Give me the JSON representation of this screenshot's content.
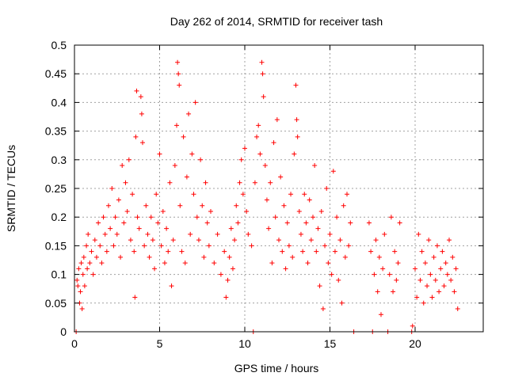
{
  "colors": {
    "series": "#ff0000",
    "axis": "#000000",
    "grid": "#a0a0a0"
  },
  "chart_data": {
    "type": "scatter",
    "title": "Day 262 of 2014, SRMTID for receiver tash",
    "xlabel": "GPS time / hours",
    "ylabel": "SRMTID / TECUs",
    "xlim": [
      0,
      24
    ],
    "ylim": [
      0,
      0.5
    ],
    "xticks": [
      0,
      5,
      10,
      15,
      20
    ],
    "yticks": [
      0,
      0.05,
      0.1,
      0.15,
      0.2,
      0.25,
      0.3,
      0.35,
      0.4,
      0.45,
      0.5
    ],
    "xtick_labels": [
      "0",
      "5",
      "10",
      "15",
      "20"
    ],
    "ytick_labels": [
      "0",
      "0.05",
      "0.1",
      "0.15",
      "0.2",
      "0.25",
      "0.3",
      "0.35",
      "0.4",
      "0.45",
      "0.5"
    ],
    "grid": true,
    "marker": "+",
    "series": [
      {
        "name": "SRMTID",
        "points": [
          [
            0.1,
            0.0
          ],
          [
            0.15,
            0.09
          ],
          [
            0.2,
            0.08
          ],
          [
            0.25,
            0.11
          ],
          [
            0.3,
            0.05
          ],
          [
            0.35,
            0.07
          ],
          [
            0.4,
            0.12
          ],
          [
            0.45,
            0.04
          ],
          [
            0.5,
            0.1
          ],
          [
            0.55,
            0.13
          ],
          [
            0.6,
            0.08
          ],
          [
            0.7,
            0.15
          ],
          [
            0.75,
            0.11
          ],
          [
            0.8,
            0.17
          ],
          [
            0.9,
            0.12
          ],
          [
            1.0,
            0.14
          ],
          [
            1.1,
            0.1
          ],
          [
            1.2,
            0.16
          ],
          [
            1.3,
            0.13
          ],
          [
            1.4,
            0.19
          ],
          [
            1.5,
            0.15
          ],
          [
            1.6,
            0.12
          ],
          [
            1.7,
            0.2
          ],
          [
            1.8,
            0.17
          ],
          [
            1.9,
            0.14
          ],
          [
            2.0,
            0.22
          ],
          [
            2.1,
            0.18
          ],
          [
            2.2,
            0.25
          ],
          [
            2.3,
            0.15
          ],
          [
            2.4,
            0.2
          ],
          [
            2.5,
            0.17
          ],
          [
            2.6,
            0.23
          ],
          [
            2.7,
            0.13
          ],
          [
            2.8,
            0.29
          ],
          [
            2.9,
            0.19
          ],
          [
            3.0,
            0.26
          ],
          [
            3.1,
            0.21
          ],
          [
            3.2,
            0.3
          ],
          [
            3.3,
            0.16
          ],
          [
            3.4,
            0.24
          ],
          [
            3.5,
            0.14
          ],
          [
            3.55,
            0.06
          ],
          [
            3.6,
            0.34
          ],
          [
            3.65,
            0.42
          ],
          [
            3.7,
            0.2
          ],
          [
            3.8,
            0.18
          ],
          [
            3.9,
            0.41
          ],
          [
            3.95,
            0.38
          ],
          [
            4.0,
            0.33
          ],
          [
            4.1,
            0.15
          ],
          [
            4.2,
            0.22
          ],
          [
            4.3,
            0.17
          ],
          [
            4.4,
            0.13
          ],
          [
            4.5,
            0.2
          ],
          [
            4.6,
            0.16
          ],
          [
            4.7,
            0.11
          ],
          [
            4.8,
            0.24
          ],
          [
            4.9,
            0.19
          ],
          [
            5.0,
            0.31
          ],
          [
            5.1,
            0.15
          ],
          [
            5.2,
            0.21
          ],
          [
            5.3,
            0.12
          ],
          [
            5.4,
            0.18
          ],
          [
            5.5,
            0.14
          ],
          [
            5.6,
            0.26
          ],
          [
            5.7,
            0.08
          ],
          [
            5.8,
            0.16
          ],
          [
            5.9,
            0.29
          ],
          [
            6.0,
            0.36
          ],
          [
            6.05,
            0.47
          ],
          [
            6.1,
            0.45
          ],
          [
            6.15,
            0.43
          ],
          [
            6.2,
            0.22
          ],
          [
            6.3,
            0.14
          ],
          [
            6.4,
            0.34
          ],
          [
            6.5,
            0.12
          ],
          [
            6.6,
            0.27
          ],
          [
            6.7,
            0.38
          ],
          [
            6.8,
            0.17
          ],
          [
            6.9,
            0.31
          ],
          [
            7.0,
            0.24
          ],
          [
            7.1,
            0.4
          ],
          [
            7.2,
            0.2
          ],
          [
            7.3,
            0.16
          ],
          [
            7.4,
            0.3
          ],
          [
            7.5,
            0.22
          ],
          [
            7.6,
            0.13
          ],
          [
            7.7,
            0.26
          ],
          [
            7.8,
            0.19
          ],
          [
            7.9,
            0.15
          ],
          [
            8.0,
            0.21
          ],
          [
            8.2,
            0.12
          ],
          [
            8.4,
            0.17
          ],
          [
            8.6,
            0.1
          ],
          [
            8.8,
            0.14
          ],
          [
            8.9,
            0.06
          ],
          [
            9.0,
            0.09
          ],
          [
            9.1,
            0.13
          ],
          [
            9.2,
            0.18
          ],
          [
            9.3,
            0.11
          ],
          [
            9.4,
            0.16
          ],
          [
            9.5,
            0.22
          ],
          [
            9.6,
            0.19
          ],
          [
            9.7,
            0.26
          ],
          [
            9.8,
            0.3
          ],
          [
            9.9,
            0.24
          ],
          [
            10.0,
            0.32
          ],
          [
            10.1,
            0.21
          ],
          [
            10.2,
            0.17
          ],
          [
            10.4,
            0.15
          ],
          [
            10.5,
            0.0
          ],
          [
            10.6,
            0.26
          ],
          [
            10.7,
            0.34
          ],
          [
            10.8,
            0.36
          ],
          [
            10.9,
            0.31
          ],
          [
            11.0,
            0.47
          ],
          [
            11.05,
            0.45
          ],
          [
            11.1,
            0.41
          ],
          [
            11.2,
            0.29
          ],
          [
            11.3,
            0.23
          ],
          [
            11.4,
            0.18
          ],
          [
            11.5,
            0.26
          ],
          [
            11.6,
            0.12
          ],
          [
            11.7,
            0.33
          ],
          [
            11.8,
            0.2
          ],
          [
            11.9,
            0.37
          ],
          [
            12.0,
            0.16
          ],
          [
            12.1,
            0.27
          ],
          [
            12.2,
            0.14
          ],
          [
            12.3,
            0.22
          ],
          [
            12.4,
            0.11
          ],
          [
            12.5,
            0.19
          ],
          [
            12.6,
            0.15
          ],
          [
            12.7,
            0.24
          ],
          [
            12.8,
            0.13
          ],
          [
            12.9,
            0.31
          ],
          [
            13.0,
            0.43
          ],
          [
            13.05,
            0.37
          ],
          [
            13.1,
            0.34
          ],
          [
            13.2,
            0.21
          ],
          [
            13.3,
            0.17
          ],
          [
            13.4,
            0.14
          ],
          [
            13.5,
            0.24
          ],
          [
            13.6,
            0.19
          ],
          [
            13.7,
            0.12
          ],
          [
            13.8,
            0.23
          ],
          [
            13.9,
            0.16
          ],
          [
            14.0,
            0.2
          ],
          [
            14.1,
            0.29
          ],
          [
            14.2,
            0.14
          ],
          [
            14.3,
            0.18
          ],
          [
            14.4,
            0.08
          ],
          [
            14.5,
            0.21
          ],
          [
            14.6,
            0.04
          ],
          [
            14.7,
            0.15
          ],
          [
            14.8,
            0.25
          ],
          [
            14.9,
            0.12
          ],
          [
            15.0,
            0.17
          ],
          [
            15.1,
            0.1
          ],
          [
            15.2,
            0.28
          ],
          [
            15.3,
            0.14
          ],
          [
            15.4,
            0.2
          ],
          [
            15.5,
            0.09
          ],
          [
            15.6,
            0.16
          ],
          [
            15.7,
            0.05
          ],
          [
            15.8,
            0.22
          ],
          [
            15.9,
            0.13
          ],
          [
            16.0,
            0.24
          ],
          [
            16.1,
            0.15
          ],
          [
            16.2,
            0.19
          ],
          [
            16.4,
            0.0
          ],
          [
            17.3,
            0.19
          ],
          [
            17.4,
            0.14
          ],
          [
            17.5,
            0.0
          ],
          [
            17.6,
            0.1
          ],
          [
            17.7,
            0.16
          ],
          [
            17.8,
            0.07
          ],
          [
            17.9,
            0.13
          ],
          [
            18.0,
            0.03
          ],
          [
            18.1,
            0.11
          ],
          [
            18.2,
            0.17
          ],
          [
            18.4,
            0.0
          ],
          [
            18.5,
            0.1
          ],
          [
            18.6,
            0.2
          ],
          [
            18.7,
            0.07
          ],
          [
            18.8,
            0.14
          ],
          [
            18.9,
            0.09
          ],
          [
            19.0,
            0.12
          ],
          [
            19.1,
            0.19
          ],
          [
            19.8,
            0.0
          ],
          [
            19.85,
            0.01
          ],
          [
            20.0,
            0.11
          ],
          [
            20.1,
            0.06
          ],
          [
            20.2,
            0.17
          ],
          [
            20.3,
            0.09
          ],
          [
            20.4,
            0.14
          ],
          [
            20.5,
            0.05
          ],
          [
            20.6,
            0.12
          ],
          [
            20.7,
            0.08
          ],
          [
            20.8,
            0.16
          ],
          [
            20.9,
            0.1
          ],
          [
            21.0,
            0.06
          ],
          [
            21.1,
            0.13
          ],
          [
            21.2,
            0.09
          ],
          [
            21.3,
            0.15
          ],
          [
            21.4,
            0.07
          ],
          [
            21.5,
            0.11
          ],
          [
            21.6,
            0.14
          ],
          [
            21.7,
            0.08
          ],
          [
            21.8,
            0.12
          ],
          [
            21.9,
            0.1
          ],
          [
            22.0,
            0.16
          ],
          [
            22.1,
            0.09
          ],
          [
            22.2,
            0.13
          ],
          [
            22.3,
            0.07
          ],
          [
            22.4,
            0.11
          ],
          [
            22.5,
            0.04
          ]
        ]
      }
    ]
  }
}
